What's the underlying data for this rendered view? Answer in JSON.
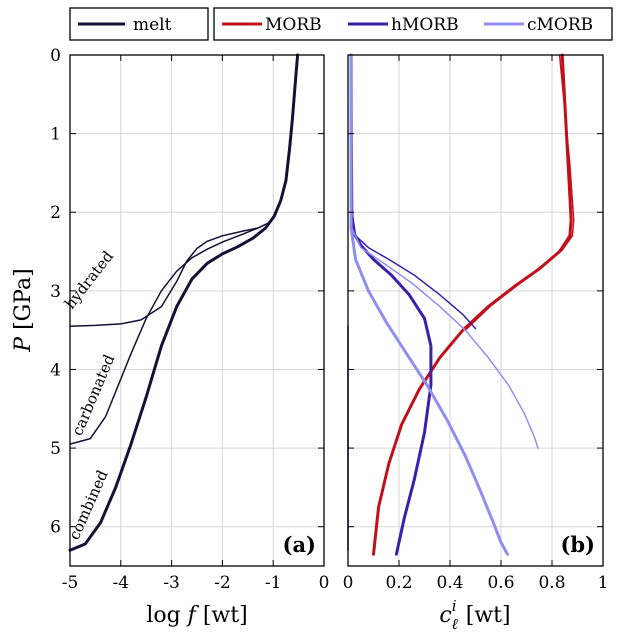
{
  "chart_data": [
    {
      "panel_label": "(a)",
      "type": "line",
      "xlabel": "log f [wt]",
      "ylabel": "P [GPa]",
      "xlim": [
        -5,
        0
      ],
      "ylim": [
        6.5,
        0
      ],
      "xticks": [
        "-5",
        "-4",
        "-3",
        "-2",
        "-1",
        "0"
      ],
      "yticks": [
        "0",
        "1",
        "2",
        "3",
        "4",
        "5",
        "6"
      ],
      "grid": true,
      "legend": {
        "position": "top-left-outside",
        "entries": [
          {
            "name": "melt",
            "color": "#141036"
          }
        ]
      },
      "series": [
        {
          "name": "hydrated",
          "color": "#141036",
          "weight": "thin",
          "points": [
            [
              -5,
              3.45
            ],
            [
              -4.5,
              3.44
            ],
            [
              -4,
              3.42
            ],
            [
              -3.6,
              3.37
            ],
            [
              -3.2,
              3.2
            ],
            [
              -2.9,
              2.88
            ],
            [
              -2.7,
              2.62
            ],
            [
              -2.5,
              2.46
            ],
            [
              -2.3,
              2.37
            ],
            [
              -2.0,
              2.3
            ],
            [
              -1.6,
              2.24
            ],
            [
              -1.3,
              2.2
            ],
            [
              -1.1,
              2.14
            ],
            [
              -0.95,
              2.03
            ],
            [
              -0.85,
              1.85
            ],
            [
              -0.75,
              1.6
            ],
            [
              -0.68,
              1.2
            ],
            [
              -0.62,
              0.8
            ],
            [
              -0.57,
              0.4
            ],
            [
              -0.52,
              0
            ]
          ]
        },
        {
          "name": "carbonated",
          "color": "#141036",
          "weight": "thin",
          "points": [
            [
              -5,
              4.95
            ],
            [
              -4.6,
              4.88
            ],
            [
              -4.3,
              4.6
            ],
            [
              -4.05,
              4.2
            ],
            [
              -3.8,
              3.8
            ],
            [
              -3.5,
              3.35
            ],
            [
              -3.2,
              3.0
            ],
            [
              -2.9,
              2.75
            ],
            [
              -2.6,
              2.58
            ],
            [
              -2.3,
              2.47
            ],
            [
              -2.0,
              2.38
            ],
            [
              -1.6,
              2.28
            ],
            [
              -1.3,
              2.2
            ],
            [
              -1.1,
              2.14
            ],
            [
              -0.95,
              2.03
            ],
            [
              -0.85,
              1.85
            ],
            [
              -0.75,
              1.6
            ],
            [
              -0.68,
              1.2
            ],
            [
              -0.62,
              0.8
            ],
            [
              -0.57,
              0.4
            ],
            [
              -0.52,
              0
            ]
          ]
        },
        {
          "name": "combined",
          "color": "#141036",
          "weight": "thick",
          "points": [
            [
              -5,
              6.3
            ],
            [
              -4.7,
              6.22
            ],
            [
              -4.4,
              5.95
            ],
            [
              -4.1,
              5.5
            ],
            [
              -3.8,
              4.95
            ],
            [
              -3.5,
              4.35
            ],
            [
              -3.2,
              3.7
            ],
            [
              -2.9,
              3.2
            ],
            [
              -2.6,
              2.85
            ],
            [
              -2.3,
              2.65
            ],
            [
              -2.0,
              2.53
            ],
            [
              -1.7,
              2.44
            ],
            [
              -1.4,
              2.33
            ],
            [
              -1.15,
              2.2
            ],
            [
              -0.98,
              2.05
            ],
            [
              -0.85,
              1.85
            ],
            [
              -0.75,
              1.6
            ],
            [
              -0.68,
              1.2
            ],
            [
              -0.62,
              0.8
            ],
            [
              -0.57,
              0.4
            ],
            [
              -0.52,
              0
            ]
          ]
        }
      ],
      "annotations": [
        {
          "text": "hydrated",
          "at": [
            -4.55,
            2.9
          ],
          "rotation_deg": -52
        },
        {
          "text": "carbonated",
          "at": [
            -4.45,
            4.35
          ],
          "rotation_deg": -67
        },
        {
          "text": "combined",
          "at": [
            -4.55,
            5.75
          ],
          "rotation_deg": -66
        }
      ]
    },
    {
      "panel_label": "(b)",
      "type": "line",
      "xlabel": "c_ℓ^i [wt]",
      "xlabel_base": "c",
      "xlabel_sup": "i",
      "xlabel_sub": "ℓ",
      "xlabel_unit": "[wt]",
      "ylabel": "",
      "xlim": [
        0,
        1
      ],
      "ylim": [
        6.5,
        0
      ],
      "xticks": [
        "0",
        "0.2",
        "0.4",
        "0.6",
        "0.8",
        "1"
      ],
      "grid": true,
      "legend": {
        "position": "top-outside",
        "entries": [
          {
            "name": "MORB",
            "color": "#c0101b"
          },
          {
            "name": "hMORB",
            "color": "#3a1fae"
          },
          {
            "name": "cMORB",
            "color": "#8f8ff2"
          }
        ]
      },
      "series": [
        {
          "name": "MORB thick",
          "color": "#c0101b",
          "weight": "thick",
          "points": [
            [
              0.84,
              0
            ],
            [
              0.85,
              0.6
            ],
            [
              0.86,
              1.2
            ],
            [
              0.87,
              1.8
            ],
            [
              0.875,
              2.1
            ],
            [
              0.87,
              2.3
            ],
            [
              0.83,
              2.5
            ],
            [
              0.75,
              2.72
            ],
            [
              0.65,
              2.95
            ],
            [
              0.55,
              3.2
            ],
            [
              0.45,
              3.5
            ],
            [
              0.36,
              3.85
            ],
            [
              0.28,
              4.25
            ],
            [
              0.21,
              4.7
            ],
            [
              0.16,
              5.2
            ],
            [
              0.12,
              5.75
            ],
            [
              0.1,
              6.35
            ]
          ]
        },
        {
          "name": "MORB thin",
          "color": "#c0101b",
          "weight": "thin",
          "points": [
            [
              0.83,
              0
            ],
            [
              0.85,
              0.7
            ],
            [
              0.87,
              1.4
            ],
            [
              0.885,
              2.1
            ],
            [
              0.88,
              2.3
            ],
            [
              0.84,
              2.48
            ],
            [
              0.76,
              2.7
            ],
            [
              0.66,
              2.94
            ],
            [
              0.56,
              3.19
            ],
            [
              0.46,
              3.5
            ]
          ]
        },
        {
          "name": "hMORB thick",
          "color": "#3a1fae",
          "weight": "thick",
          "points": [
            [
              0.012,
              0
            ],
            [
              0.013,
              1.0
            ],
            [
              0.015,
              2.0
            ],
            [
              0.02,
              2.25
            ],
            [
              0.05,
              2.42
            ],
            [
              0.1,
              2.6
            ],
            [
              0.17,
              2.8
            ],
            [
              0.24,
              3.05
            ],
            [
              0.3,
              3.35
            ],
            [
              0.325,
              3.7
            ],
            [
              0.325,
              4.2
            ],
            [
              0.3,
              4.8
            ],
            [
              0.26,
              5.4
            ],
            [
              0.22,
              5.9
            ],
            [
              0.19,
              6.35
            ]
          ]
        },
        {
          "name": "hMORB thin",
          "color": "#3a1fae",
          "weight": "thin",
          "points": [
            [
              0.012,
              0
            ],
            [
              0.013,
              1.0
            ],
            [
              0.016,
              2.0
            ],
            [
              0.03,
              2.3
            ],
            [
              0.08,
              2.45
            ],
            [
              0.16,
              2.6
            ],
            [
              0.26,
              2.8
            ],
            [
              0.36,
              3.05
            ],
            [
              0.45,
              3.3
            ],
            [
              0.5,
              3.48
            ]
          ]
        },
        {
          "name": "hMORB floor",
          "color": "#3a1fae",
          "weight": "thin",
          "points": [
            [
              0.0,
              3.45
            ],
            [
              0.0,
              6.3
            ]
          ]
        },
        {
          "name": "cMORB thick",
          "color": "#8f8ff2",
          "weight": "thick",
          "points": [
            [
              0.012,
              0
            ],
            [
              0.012,
              1.0
            ],
            [
              0.012,
              2.2
            ],
            [
              0.03,
              2.6
            ],
            [
              0.08,
              3.0
            ],
            [
              0.15,
              3.4
            ],
            [
              0.23,
              3.8
            ],
            [
              0.31,
              4.2
            ],
            [
              0.39,
              4.65
            ],
            [
              0.46,
              5.1
            ],
            [
              0.52,
              5.55
            ],
            [
              0.57,
              5.95
            ],
            [
              0.6,
              6.2
            ],
            [
              0.625,
              6.35
            ]
          ]
        },
        {
          "name": "cMORB thin",
          "color": "#8f8ff2",
          "weight": "thin",
          "points": [
            [
              0.012,
              0
            ],
            [
              0.013,
              1.0
            ],
            [
              0.015,
              2.2
            ],
            [
              0.05,
              2.45
            ],
            [
              0.14,
              2.65
            ],
            [
              0.25,
              2.9
            ],
            [
              0.36,
              3.2
            ],
            [
              0.46,
              3.5
            ],
            [
              0.55,
              3.85
            ],
            [
              0.63,
              4.2
            ],
            [
              0.69,
              4.55
            ],
            [
              0.73,
              4.85
            ],
            [
              0.745,
              5.0
            ]
          ]
        }
      ]
    }
  ]
}
